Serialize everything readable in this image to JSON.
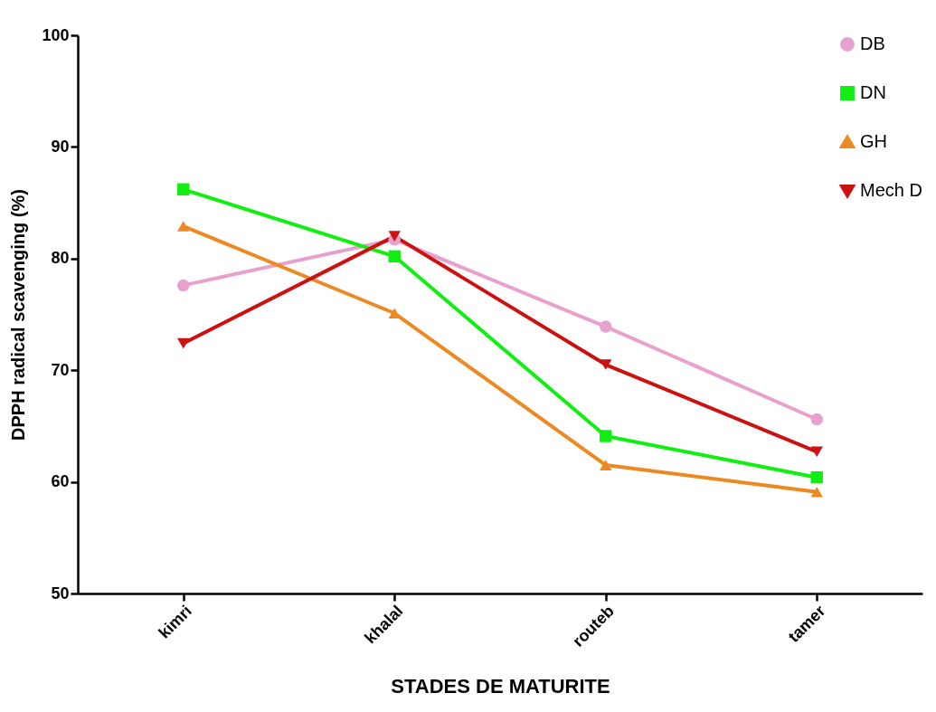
{
  "chart_data": {
    "type": "line",
    "xlabel": "STADES DE MATURITE",
    "ylabel": "DPPH radical scavenging (%)",
    "categories": [
      "kimri",
      "khalal",
      "routeb",
      "tamer"
    ],
    "ylim": [
      50,
      100
    ],
    "yticks": [
      50,
      60,
      70,
      80,
      90,
      100
    ],
    "grid": false,
    "legend": "top right",
    "line_style": "solid",
    "series": [
      {
        "name": "DB",
        "color": "#e8a0cc",
        "marker": "circle",
        "values": [
          77.6,
          81.7,
          73.9,
          65.6
        ]
      },
      {
        "name": "DN",
        "color": "#11ee11",
        "marker": "square",
        "values": [
          86.2,
          80.2,
          64.1,
          60.4
        ]
      },
      {
        "name": "GH",
        "color": "#ee8822",
        "marker": "triangle",
        "values": [
          82.9,
          75.1,
          61.5,
          59.1
        ]
      },
      {
        "name": "Mech D",
        "color": "#cc1111",
        "marker": "triangle-down",
        "values": [
          72.4,
          82.0,
          70.5,
          62.7
        ]
      }
    ]
  }
}
